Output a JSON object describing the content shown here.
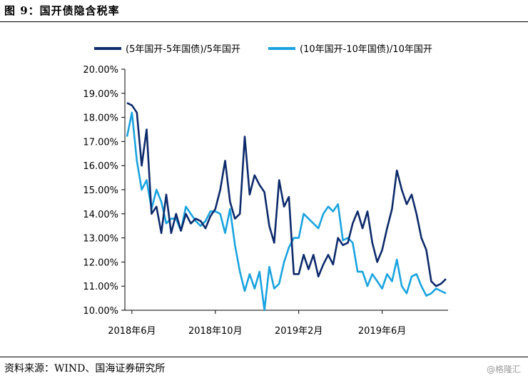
{
  "figure": {
    "title": "图 9：国开债隐含税率",
    "source": "资料来源：WIND、国海证券研究所",
    "watermark": "@格隆汇"
  },
  "chart_data": {
    "type": "line",
    "title": "",
    "xlabel": "",
    "ylabel": "",
    "ylim": [
      10.0,
      20.0
    ],
    "yticks": [
      "10.00%",
      "11.00%",
      "12.00%",
      "13.00%",
      "14.00%",
      "15.00%",
      "16.00%",
      "17.00%",
      "18.00%",
      "19.00%",
      "20.00%"
    ],
    "xticks": [
      "2018年6月",
      "2018年10月",
      "2019年2月",
      "2019年6月"
    ],
    "xtick_index": [
      1,
      18,
      35,
      52
    ],
    "legend_position": "top",
    "grid": false,
    "series": [
      {
        "name": "(5年国开-5年国债)/5年国开",
        "color": "#0d2a6b",
        "values": [
          18.6,
          18.5,
          18.2,
          16.0,
          17.5,
          14.0,
          14.3,
          13.2,
          14.8,
          13.2,
          14.0,
          13.3,
          14.0,
          13.6,
          13.8,
          13.7,
          13.4,
          13.9,
          14.2,
          15.0,
          16.2,
          14.5,
          13.8,
          14.0,
          17.2,
          14.8,
          15.6,
          15.2,
          14.9,
          13.5,
          12.8,
          15.4,
          14.3,
          14.7,
          11.5,
          11.5,
          12.3,
          11.7,
          12.3,
          11.4,
          11.9,
          12.3,
          11.9,
          13.0,
          12.7,
          12.8,
          13.6,
          14.1,
          13.4,
          14.1,
          12.8,
          12.0,
          12.5,
          13.4,
          14.2,
          15.8,
          15.0,
          14.4,
          14.8,
          14.0,
          13.0,
          12.5,
          11.2,
          11.0,
          11.1,
          11.3
        ]
      },
      {
        "name": "(10年国开-10年国债)/10年国开",
        "color": "#1aa3df",
        "values": [
          17.2,
          18.2,
          16.2,
          15.0,
          15.4,
          14.2,
          15.0,
          14.5,
          13.6,
          13.8,
          13.8,
          13.3,
          14.3,
          14.0,
          13.7,
          13.5,
          13.7,
          14.1,
          14.1,
          14.0,
          13.2,
          14.2,
          12.7,
          11.6,
          10.8,
          11.5,
          10.9,
          11.6,
          10.0,
          11.8,
          10.9,
          11.1,
          12.0,
          12.6,
          13.0,
          13.0,
          14.0,
          13.8,
          13.6,
          13.4,
          14.0,
          14.3,
          14.1,
          14.4,
          12.9,
          13.0,
          12.8,
          11.6,
          11.6,
          11.0,
          11.5,
          11.2,
          10.9,
          11.5,
          11.2,
          12.1,
          11.0,
          10.7,
          11.4,
          11.5,
          11.0,
          10.6,
          10.7,
          10.9,
          10.8,
          10.7
        ]
      }
    ]
  }
}
